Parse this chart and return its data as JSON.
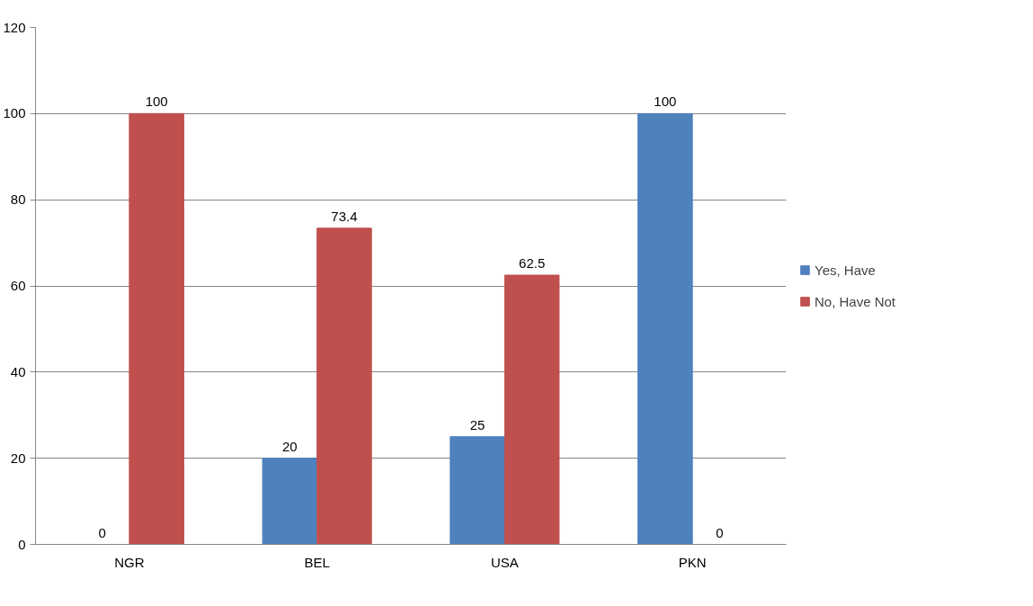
{
  "chart_data": {
    "type": "bar",
    "categories": [
      "NGR",
      "BEL",
      "USA",
      "PKN"
    ],
    "series": [
      {
        "name": "Yes, Have",
        "color": "#4f81bd",
        "values": [
          0,
          20,
          25,
          100
        ]
      },
      {
        "name": "No, Have Not",
        "color": "#c0504d",
        "values": [
          100,
          73.4,
          62.5,
          0
        ]
      }
    ],
    "ylim": [
      0,
      120
    ],
    "yticks": [
      0,
      20,
      40,
      60,
      80,
      100,
      120
    ],
    "grid": "y",
    "legend": "right",
    "data_labels": true
  }
}
